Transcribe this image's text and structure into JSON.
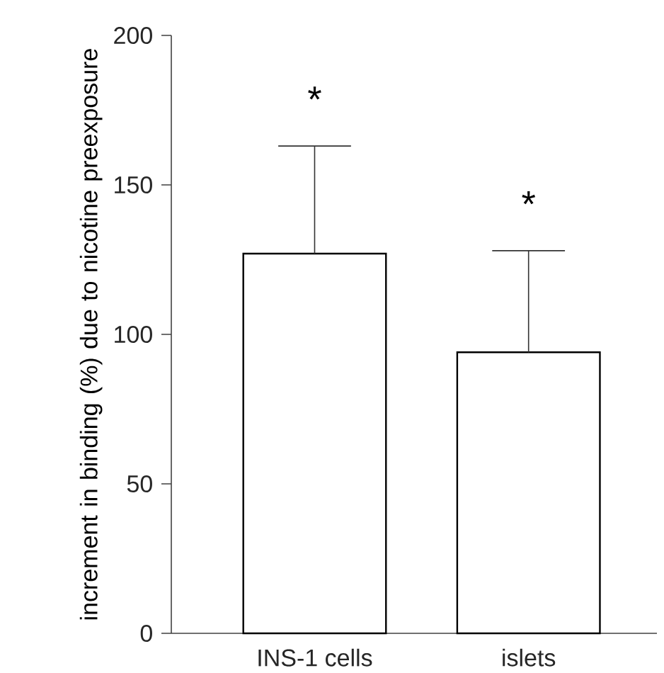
{
  "chart_data": {
    "type": "bar",
    "ylabel": "increment in binding (%) due to nicotine preexposure",
    "categories": [
      "INS-1 cells",
      "islets"
    ],
    "values": [
      127,
      94
    ],
    "errors": [
      [
        127,
        163
      ],
      [
        94,
        128
      ]
    ],
    "color": "#ffffff",
    "ylim": [
      0,
      200
    ],
    "yticks": [
      0,
      50,
      100,
      150,
      200
    ],
    "annotations": [
      "*",
      "*"
    ],
    "grid": false
  }
}
